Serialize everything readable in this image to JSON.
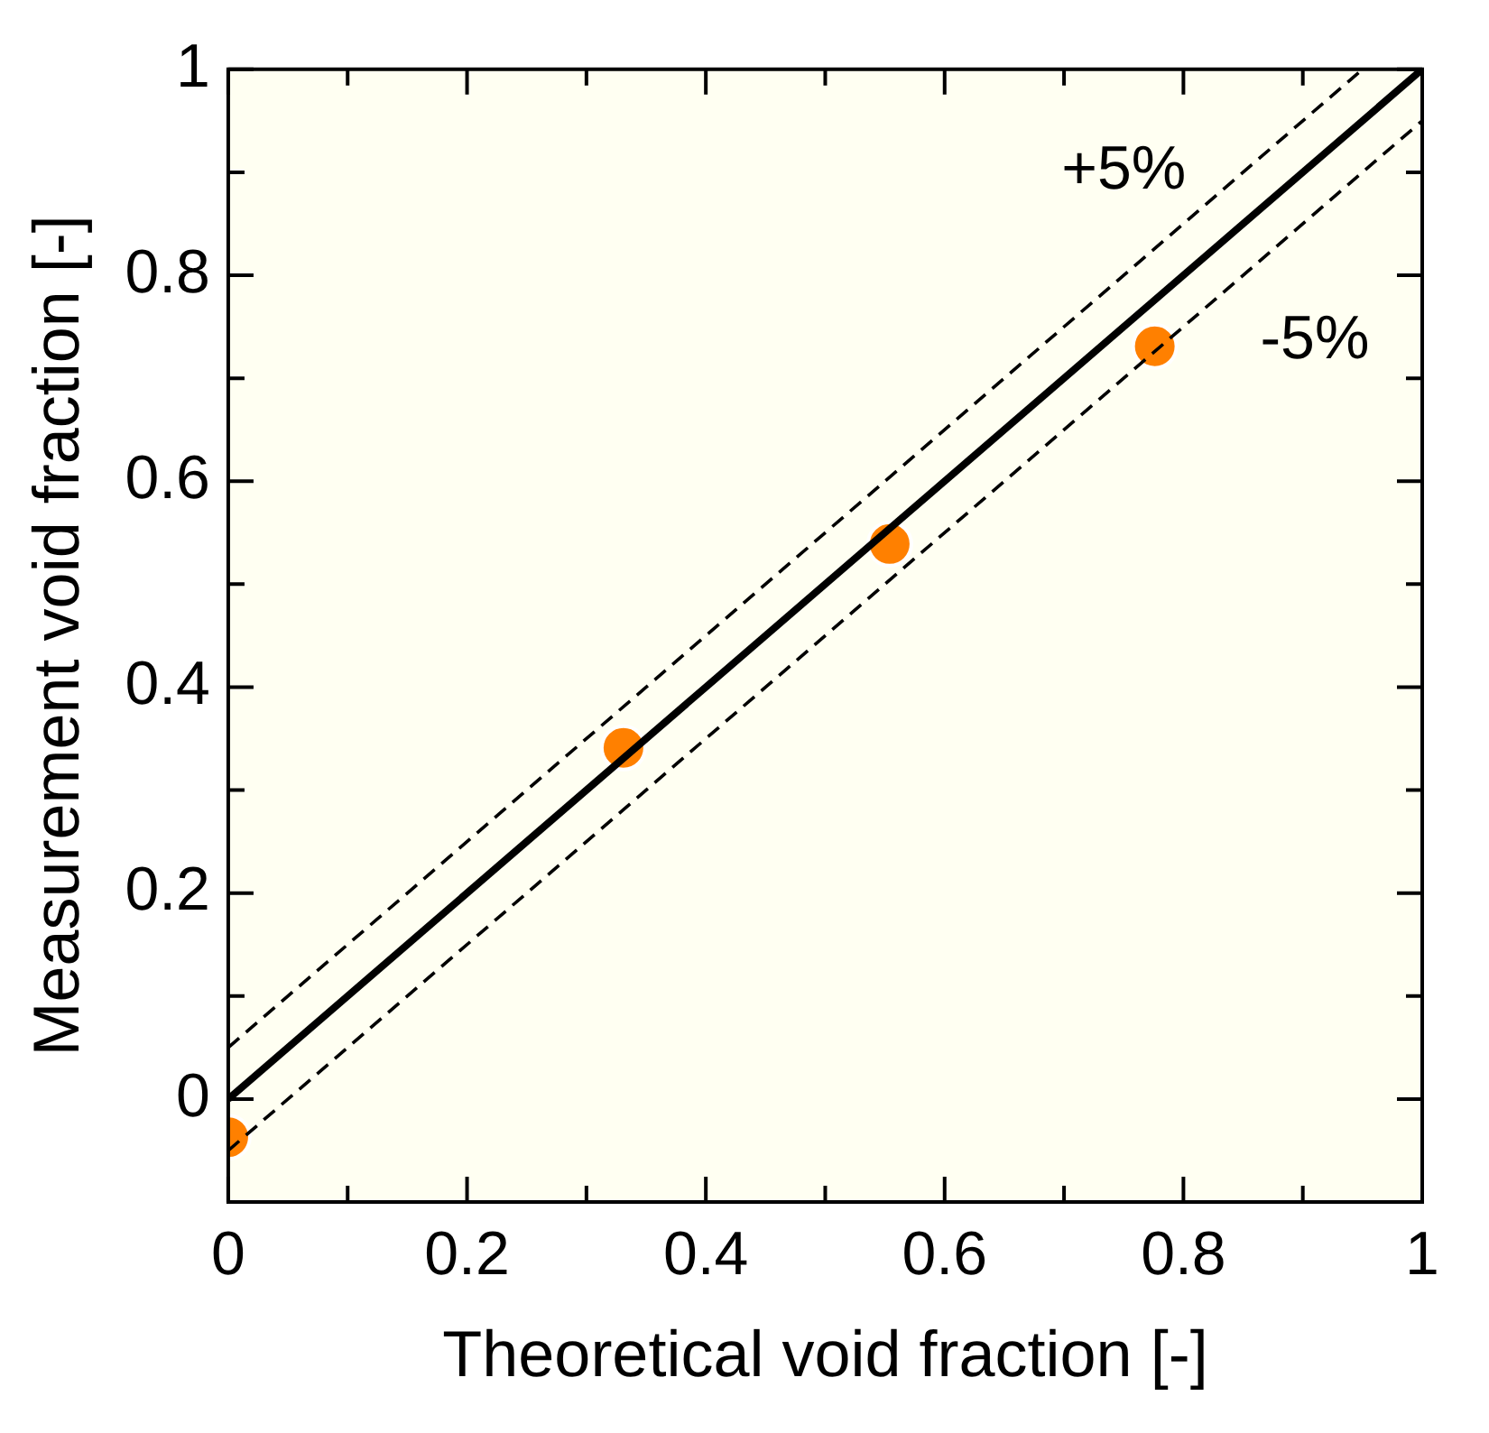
{
  "chart_data": {
    "type": "scatter",
    "xlabel": "Theoretical void fraction [-]",
    "ylabel": "Measurement void fraction [-]",
    "xlim": [
      0,
      1
    ],
    "ylim": [
      -0.1,
      1
    ],
    "xticks": [
      0,
      {
        "value": 0.1,
        "label": null
      },
      0.2,
      {
        "value": 0.3,
        "label": null
      },
      0.4,
      {
        "value": 0.5,
        "label": null
      },
      0.6,
      {
        "value": 0.7,
        "label": null
      },
      0.8,
      {
        "value": 0.9,
        "label": null
      },
      1
    ],
    "yticks": [
      {
        "value": -0.1,
        "label": null
      },
      0,
      {
        "value": 0.1,
        "label": null
      },
      0.2,
      {
        "value": 0.3,
        "label": null
      },
      0.4,
      {
        "value": 0.5,
        "label": null
      },
      0.6,
      {
        "value": 0.7,
        "label": null
      },
      0.8,
      {
        "value": 0.9,
        "label": null
      },
      1
    ],
    "grid": false,
    "legend": false,
    "series": [
      {
        "type": "line",
        "color": "#000000",
        "line_style": "solid",
        "x": [
          0,
          1
        ],
        "values": [
          0,
          1
        ]
      },
      {
        "type": "line",
        "color": "#000000",
        "line_style": "dashed",
        "x": [
          0,
          0.95
        ],
        "values": [
          0.05,
          1
        ]
      },
      {
        "type": "line",
        "color": "#000000",
        "line_style": "dashed",
        "x": [
          0,
          1
        ],
        "values": [
          -0.05,
          0.95
        ]
      },
      {
        "color": "#ff8000",
        "marker": "circle",
        "x": [
          0,
          0.331,
          0.554,
          0.776
        ],
        "values": [
          -0.037,
          0.341,
          0.539,
          0.731
        ]
      }
    ],
    "annotations": [
      "+5%",
      "-5%"
    ]
  }
}
